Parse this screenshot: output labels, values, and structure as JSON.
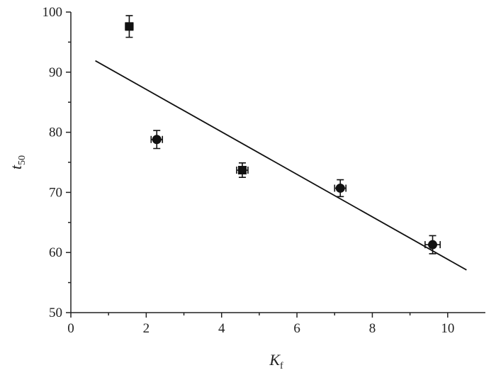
{
  "chart_data": {
    "type": "scatter",
    "xlabel": {
      "main": "K",
      "sub": "f"
    },
    "ylabel": {
      "main": "t",
      "sub": "50"
    },
    "x": [
      1.55,
      2.28,
      4.55,
      7.15,
      9.6
    ],
    "values": [
      97.6,
      78.8,
      73.7,
      70.7,
      61.3
    ],
    "yerr": [
      1.8,
      1.5,
      1.2,
      1.4,
      1.5
    ],
    "xerr": [
      0.1,
      0.15,
      0.15,
      0.15,
      0.2
    ],
    "markers": [
      "square",
      "circle",
      "square",
      "circle",
      "circle"
    ],
    "color": "#111111",
    "fit": {
      "x": [
        0.65,
        10.5
      ],
      "y": [
        91.9,
        57.1
      ],
      "color": "#111111"
    },
    "xlim": [
      0,
      11
    ],
    "ylim": [
      50,
      100
    ],
    "xticks": [
      0,
      2,
      4,
      6,
      8,
      10
    ],
    "yticks": [
      50,
      60,
      70,
      80,
      90,
      100
    ]
  }
}
